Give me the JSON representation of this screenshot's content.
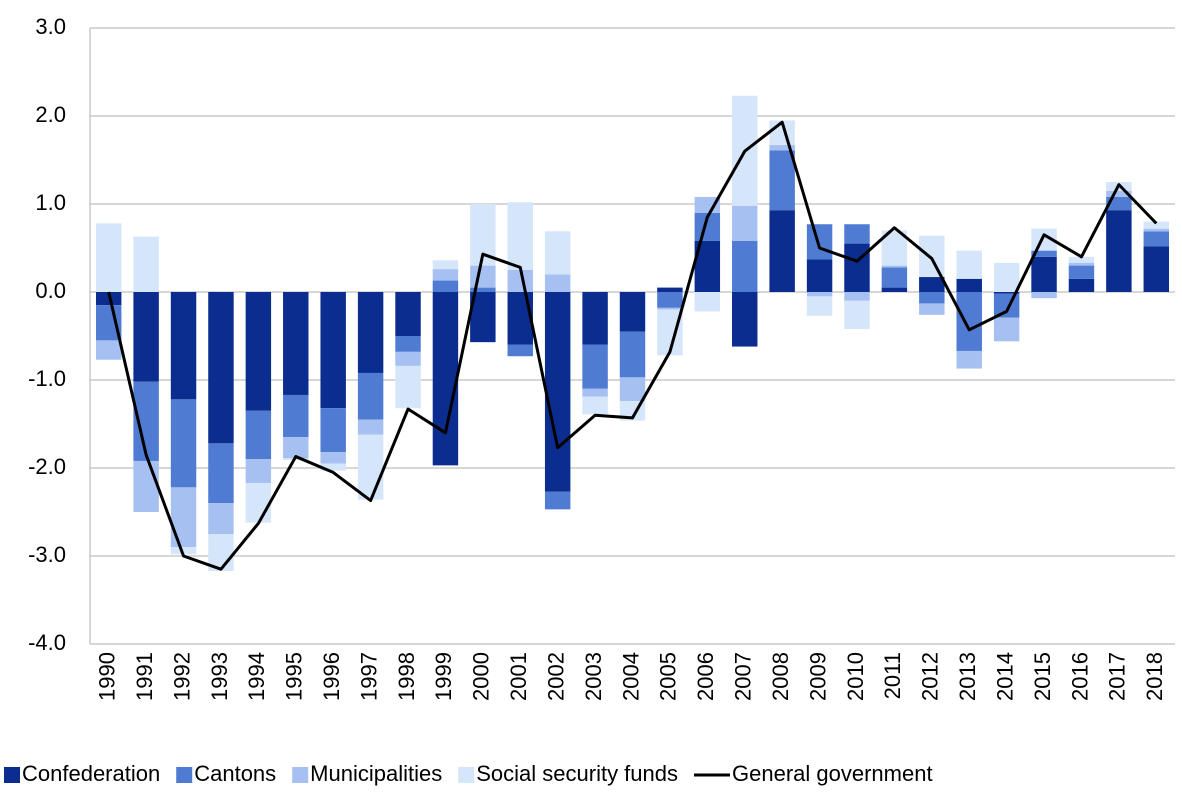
{
  "chart_data": {
    "type": "bar",
    "stacking": "diverging",
    "categories": [
      "1990",
      "1991",
      "1992",
      "1993",
      "1994",
      "1995",
      "1996",
      "1997",
      "1998",
      "1999",
      "2000",
      "2001",
      "2002",
      "2003",
      "2004",
      "2005",
      "2006",
      "2007",
      "2008",
      "2009",
      "2010",
      "2011",
      "2012",
      "2013",
      "2014",
      "2015",
      "2016",
      "2017",
      "2018"
    ],
    "series": [
      {
        "name": "Confederation",
        "color": "#0a2d8f",
        "values": [
          -0.15,
          -1.02,
          -1.22,
          -1.72,
          -1.35,
          -1.17,
          -1.32,
          -0.92,
          -0.5,
          -1.97,
          -0.57,
          -0.6,
          -2.27,
          -0.6,
          -0.45,
          0.05,
          0.58,
          -0.62,
          0.93,
          0.37,
          0.55,
          0.05,
          0.17,
          0.15,
          -0.02,
          0.4,
          0.15,
          0.93,
          0.52
        ]
      },
      {
        "name": "Cantons",
        "color": "#4f7bd3",
        "values": [
          -0.4,
          -0.9,
          -1.0,
          -0.68,
          -0.55,
          -0.48,
          -0.5,
          -0.53,
          -0.18,
          0.13,
          0.05,
          -0.13,
          -0.2,
          -0.5,
          -0.52,
          -0.18,
          0.32,
          0.58,
          0.68,
          0.4,
          0.22,
          0.23,
          -0.13,
          -0.67,
          -0.27,
          0.07,
          0.15,
          0.15,
          0.17
        ]
      },
      {
        "name": "Municipalities",
        "color": "#a6c1f1",
        "values": [
          -0.22,
          -0.58,
          -0.68,
          -0.35,
          -0.27,
          -0.24,
          -0.13,
          -0.17,
          -0.16,
          0.13,
          0.25,
          0.25,
          0.2,
          -0.09,
          -0.27,
          -0.02,
          0.18,
          0.4,
          0.06,
          -0.05,
          -0.1,
          0.02,
          -0.13,
          -0.2,
          -0.27,
          -0.07,
          0.03,
          0.07,
          0.03
        ]
      },
      {
        "name": "Social security funds",
        "color": "#d5e5fa",
        "values": [
          0.78,
          0.63,
          -0.08,
          -0.42,
          -0.45,
          -0.02,
          -0.08,
          -0.74,
          -0.48,
          0.1,
          0.7,
          0.77,
          0.49,
          -0.2,
          -0.22,
          -0.52,
          -0.22,
          1.25,
          0.28,
          -0.22,
          -0.32,
          0.4,
          0.47,
          0.32,
          0.33,
          0.25,
          0.07,
          0.1,
          0.08
        ]
      },
      {
        "name": "General government",
        "type": "line",
        "color": "#000000",
        "values": [
          0.0,
          -1.85,
          -3.0,
          -3.15,
          -2.63,
          -1.87,
          -2.05,
          -2.37,
          -1.33,
          -1.6,
          0.43,
          0.28,
          -1.77,
          -1.4,
          -1.43,
          -0.68,
          0.85,
          1.6,
          1.93,
          0.5,
          0.35,
          0.73,
          0.38,
          -0.43,
          -0.22,
          0.65,
          0.4,
          1.22,
          0.78
        ]
      }
    ],
    "ylim": [
      -4,
      3
    ],
    "yticks": [
      {
        "value": -4,
        "label": "-4.0"
      },
      {
        "value": -3,
        "label": "-3.0"
      },
      {
        "value": -2,
        "label": "-2.0"
      },
      {
        "value": -1,
        "label": "-1.0"
      },
      {
        "value": 0,
        "label": "0.0"
      },
      {
        "value": 1,
        "label": "1.0"
      },
      {
        "value": 2,
        "label": "2.0"
      },
      {
        "value": 3,
        "label": "3.0"
      }
    ],
    "grid": true,
    "legend": "bottom"
  }
}
